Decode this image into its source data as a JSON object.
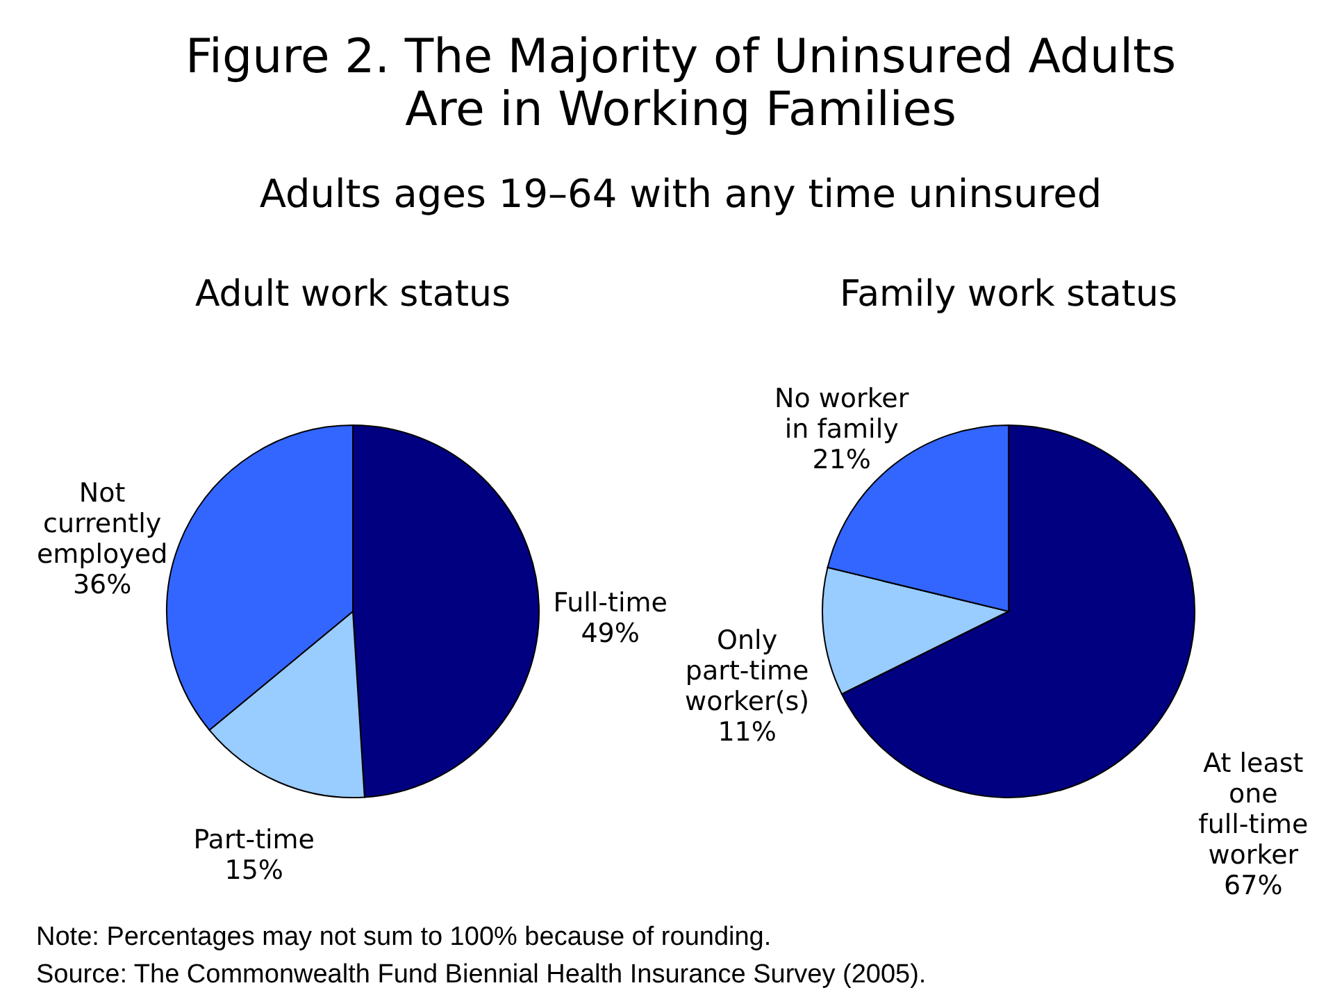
{
  "chart_data": [
    {
      "type": "other",
      "title": "Figure 2. The Majority of Uninsured Adults Are in Working Families",
      "subtitle": "Adults ages 19–64 with any time uninsured",
      "annotations": [
        "Note: Percentages may not sum to 100% because of rounding.",
        "Source: The Commonwealth Fund Biennial Health Insurance Survey (2005)."
      ]
    },
    {
      "type": "pie",
      "title": "Adult work status",
      "categories": [
        "Full-time",
        "Part-time",
        "Not currently employed"
      ],
      "values": [
        49,
        15,
        36
      ],
      "colors": [
        "#000080",
        "#99ccff",
        "#3366ff"
      ],
      "value_labels": [
        "49%",
        "15%",
        "36%"
      ]
    },
    {
      "type": "pie",
      "title": "Family work status",
      "categories": [
        "At least one full-time worker",
        "Only part-time worker(s)",
        "No worker in family"
      ],
      "values": [
        67,
        11,
        21
      ],
      "colors": [
        "#000080",
        "#99ccff",
        "#3366ff"
      ],
      "value_labels": [
        "67%",
        "11%",
        "21%"
      ]
    }
  ]
}
